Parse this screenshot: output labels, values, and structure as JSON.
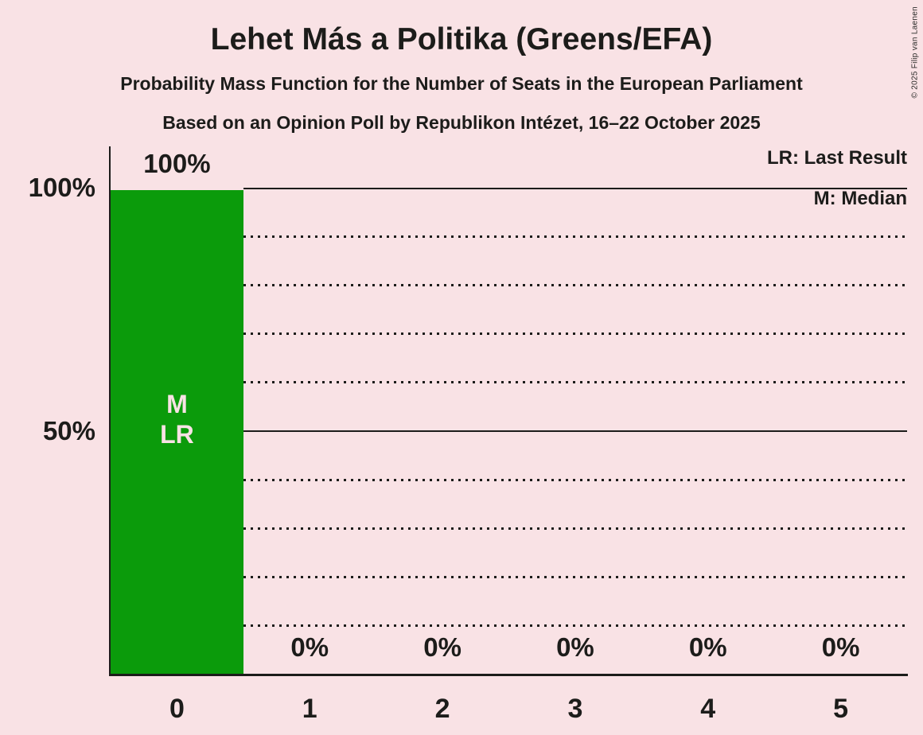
{
  "title": "Lehet Más a Politika (Greens/EFA)",
  "subtitle": "Probability Mass Function for the Number of Seats in the European Parliament",
  "source_line": "Based on an Opinion Poll by Republikon Intézet, 16–22 October 2025",
  "copyright": "© 2025 Filip van Laenen",
  "legend": {
    "last_result": "LR: Last Result",
    "median": "M: Median"
  },
  "colors": {
    "background": "#F9E2E5",
    "text": "#1C1C1A",
    "bar": "#0B9B0B",
    "bar_annotation_text": "#F9E2E5"
  },
  "chart_data": {
    "type": "bar",
    "title": "Lehet Más a Politika (Greens/EFA)",
    "categories": [
      "0",
      "1",
      "2",
      "3",
      "4",
      "5"
    ],
    "values_percent": [
      100,
      0,
      0,
      0,
      0,
      0
    ],
    "bar_value_labels": [
      "100%",
      "0%",
      "0%",
      "0%",
      "0%",
      "0%"
    ],
    "bar_annotations": [
      [
        "M",
        "LR"
      ],
      [],
      [],
      [],
      [],
      []
    ],
    "y_ticks": [
      {
        "value": 100,
        "label": "100%"
      },
      {
        "value": 50,
        "label": "50%"
      }
    ],
    "ylim": [
      0,
      100
    ],
    "gridlines_dotted_percent": [
      10,
      20,
      30,
      40,
      60,
      70,
      80,
      90
    ],
    "gridlines_solid_percent": [
      50,
      100
    ],
    "legend_position": "top-right",
    "grid": true
  }
}
